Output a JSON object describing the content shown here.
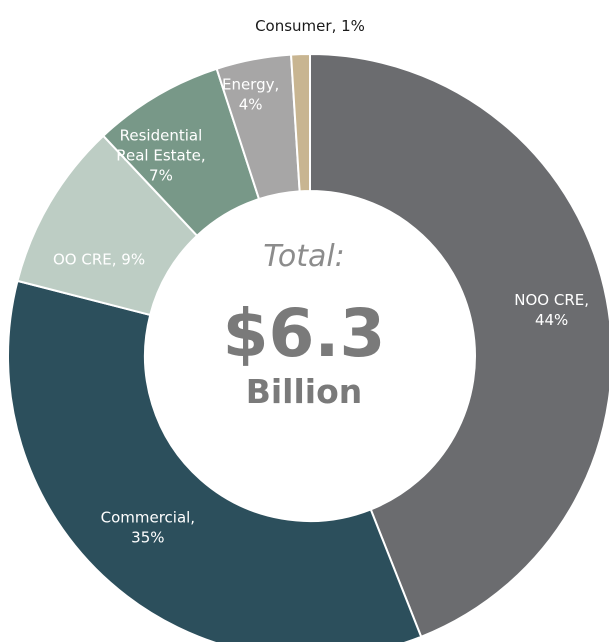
{
  "chart_data": {
    "type": "pie",
    "style": "donut",
    "categories": [
      "NOO CRE",
      "Commercial",
      "OO CRE",
      "Residential Real Estate",
      "Energy",
      "Consumer"
    ],
    "values": [
      44,
      35,
      9,
      7,
      4,
      1
    ],
    "unit": "%",
    "slice_labels": [
      [
        "NOO CRE,",
        "44%"
      ],
      [
        "Commercial,",
        "35%"
      ],
      [
        "OO CRE, 9%"
      ],
      [
        "Residential",
        "Real Estate,",
        "7%"
      ],
      [
        "Energy,",
        "4%"
      ],
      [
        "Consumer, 1%"
      ]
    ],
    "colors": [
      "#6b6c6f",
      "#2c4f5c",
      "#bdcdc4",
      "#789888",
      "#a7a6a6",
      "#c8b591"
    ],
    "label_colors": [
      "#ffffff",
      "#ffffff",
      "#ffffff",
      "#ffffff",
      "#ffffff",
      "#1a1a1a"
    ],
    "legend": "none"
  },
  "center": {
    "title": "Total:",
    "value": "$6.3",
    "unit": "Billion"
  }
}
